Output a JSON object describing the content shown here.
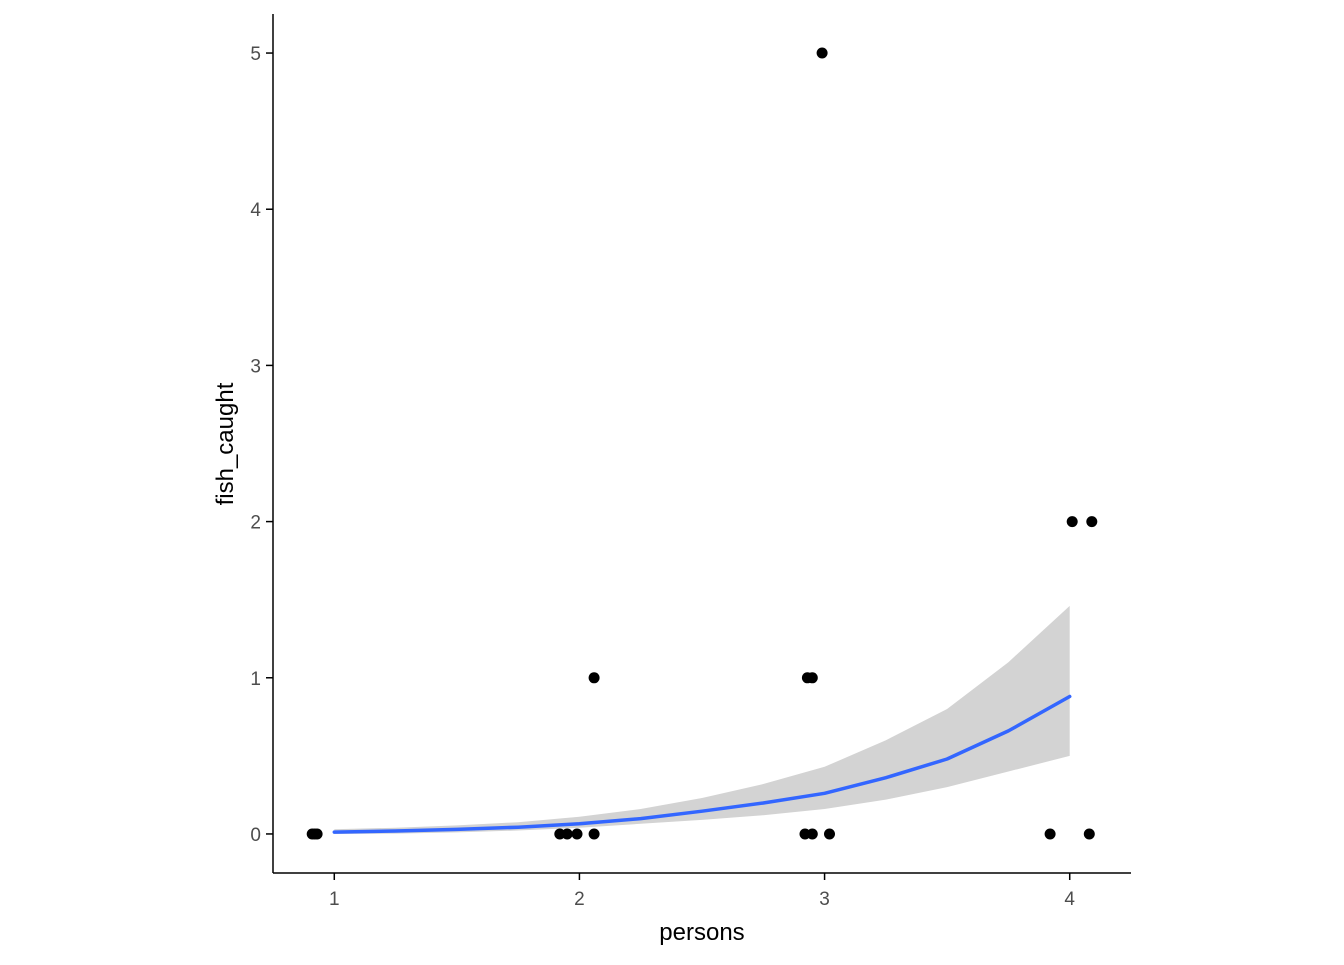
{
  "chart_data": {
    "type": "scatter",
    "title": "",
    "xlabel": "persons",
    "ylabel": "fish_caught",
    "xlim": [
      0.75,
      4.25
    ],
    "ylim": [
      -0.25,
      5.25
    ],
    "x_ticks": [
      1,
      2,
      3,
      4
    ],
    "y_ticks": [
      0,
      1,
      2,
      3,
      4,
      5
    ],
    "grid": false,
    "legend": "none",
    "colors": {
      "points": "#000000",
      "fit_line": "#3366ff",
      "ribbon": "#d3d3d3",
      "axis": "#000000",
      "tick_text": "#4d4d4d"
    },
    "points": [
      {
        "x": 0.91,
        "y": 0
      },
      {
        "x": 0.92,
        "y": 0
      },
      {
        "x": 0.93,
        "y": 0
      },
      {
        "x": 1.92,
        "y": 0
      },
      {
        "x": 1.95,
        "y": 0
      },
      {
        "x": 1.99,
        "y": 0
      },
      {
        "x": 2.06,
        "y": 0
      },
      {
        "x": 2.06,
        "y": 1
      },
      {
        "x": 2.92,
        "y": 0
      },
      {
        "x": 2.95,
        "y": 0
      },
      {
        "x": 3.02,
        "y": 0
      },
      {
        "x": 2.93,
        "y": 1
      },
      {
        "x": 2.95,
        "y": 1
      },
      {
        "x": 2.99,
        "y": 5
      },
      {
        "x": 3.92,
        "y": 0
      },
      {
        "x": 4.08,
        "y": 0
      },
      {
        "x": 4.01,
        "y": 2
      },
      {
        "x": 4.09,
        "y": 2
      }
    ],
    "fit": {
      "x": [
        1.0,
        1.25,
        1.5,
        1.75,
        2.0,
        2.25,
        2.5,
        2.75,
        3.0,
        3.25,
        3.5,
        3.75,
        4.0
      ],
      "y": [
        0.012,
        0.019,
        0.029,
        0.043,
        0.065,
        0.098,
        0.146,
        0.198,
        0.26,
        0.36,
        0.48,
        0.66,
        0.88
      ],
      "lower": [
        0.0,
        0.002,
        0.01,
        0.022,
        0.04,
        0.065,
        0.09,
        0.12,
        0.16,
        0.22,
        0.3,
        0.4,
        0.5
      ],
      "upper": [
        0.03,
        0.04,
        0.055,
        0.075,
        0.11,
        0.16,
        0.23,
        0.32,
        0.43,
        0.6,
        0.8,
        1.1,
        1.46
      ]
    }
  }
}
